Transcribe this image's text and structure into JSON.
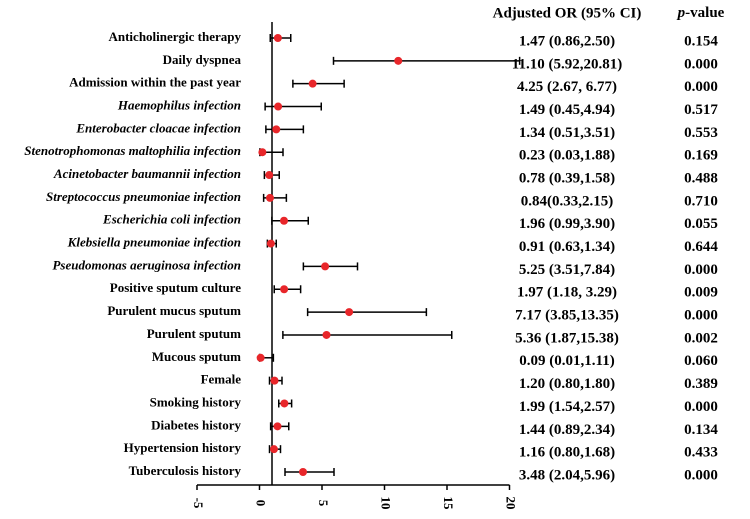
{
  "chart_data": {
    "type": "forest",
    "or_header": "Adjusted OR (95% CI)",
    "p_header": {
      "italic": "p",
      "rest": "-value"
    },
    "categories": [
      "Anticholinergic therapy",
      "Daily dyspnea",
      "Admission within the past year",
      "Haemophilus infection",
      "Enterobacter cloacae infection",
      "Stenotrophomonas maltophilia infection",
      "Acinetobacter baumannii infection",
      "Streptococcus pneumoniae infection",
      "Escherichia coli infection",
      "Klebsiella pneumoniae infection",
      "Pseudomonas aeruginosa infection",
      "Positive sputum culture",
      "Purulent mucus sputum",
      "Purulent sputum",
      "Mucous sputum",
      "Female",
      "Smoking history",
      "Diabetes history",
      "Hypertension history",
      "Tuberculosis history"
    ],
    "category_italic": [
      false,
      false,
      false,
      true,
      true,
      true,
      true,
      true,
      true,
      true,
      true,
      false,
      false,
      false,
      false,
      false,
      false,
      false,
      false,
      false
    ],
    "values": [
      1.47,
      11.1,
      4.25,
      1.49,
      1.34,
      0.23,
      0.78,
      0.84,
      1.96,
      0.91,
      5.25,
      1.97,
      7.17,
      5.36,
      0.09,
      1.2,
      1.99,
      1.44,
      1.16,
      3.48
    ],
    "lower": [
      0.86,
      5.92,
      2.67,
      0.45,
      0.51,
      0.03,
      0.39,
      0.33,
      0.99,
      0.63,
      3.51,
      1.18,
      3.85,
      1.87,
      0.01,
      0.8,
      1.54,
      0.89,
      0.8,
      2.04
    ],
    "upper": [
      2.5,
      20.81,
      6.77,
      4.94,
      3.51,
      1.88,
      1.58,
      2.15,
      3.9,
      1.34,
      7.84,
      3.29,
      13.35,
      15.38,
      1.11,
      1.8,
      2.57,
      2.34,
      1.68,
      5.96
    ],
    "value_labels": [
      "1.47 (0.86,2.50)",
      "11.10 (5.92,20.81)",
      "4.25 (2.67, 6.77)",
      "1.49 (0.45,4.94)",
      "1.34 (0.51,3.51)",
      "0.23 (0.03,1.88)",
      "0.78 (0.39,1.58)",
      "0.84(0.33,2.15)",
      "1.96 (0.99,3.90)",
      "0.91 (0.63,1.34)",
      "5.25 (3.51,7.84)",
      "1.97 (1.18, 3.29)",
      "7.17 (3.85,13.35)",
      "5.36 (1.87,15.38)",
      "0.09 (0.01,1.11)",
      "1.20 (0.80,1.80)",
      "1.99 (1.54,2.57)",
      "1.44 (0.89,2.34)",
      "1.16 (0.80,1.68)",
      "3.48 (2.04,5.96)"
    ],
    "p_values": [
      "0.154",
      "0.000",
      "0.000",
      "0.517",
      "0.553",
      "0.169",
      "0.488",
      "0.710",
      "0.055",
      "0.644",
      "0.000",
      "0.009",
      "0.000",
      "0.002",
      "0.060",
      "0.389",
      "0.000",
      "0.134",
      "0.433",
      "0.000"
    ],
    "xlim": [
      -5,
      20
    ],
    "xticks": [
      -5,
      0,
      5,
      10,
      15,
      20
    ],
    "ref_line": 1,
    "color": "#e8262a",
    "ci_color": "#000000"
  }
}
